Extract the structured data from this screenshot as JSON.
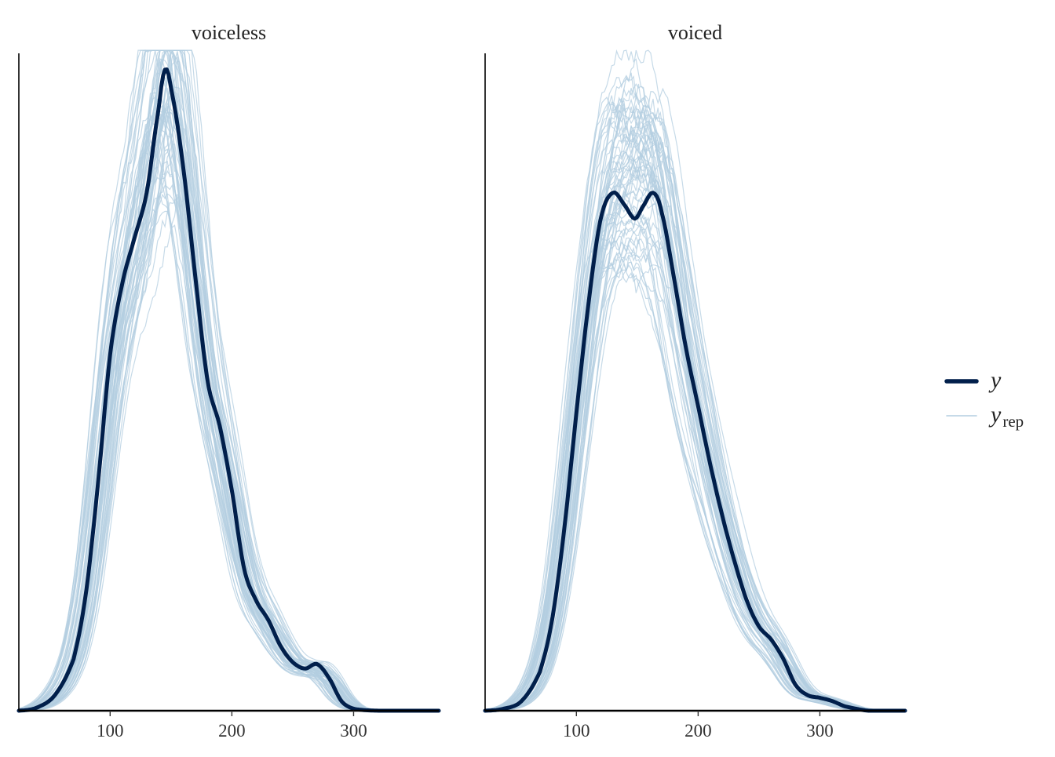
{
  "chart_data": {
    "type": "line",
    "facets": [
      {
        "title": "voiceless",
        "xlim": [
          25,
          370
        ],
        "ylim": [
          0,
          1.0
        ],
        "x_ticks": [
          100,
          200,
          300
        ],
        "y": {
          "x": [
            25,
            40,
            55,
            70,
            80,
            90,
            100,
            110,
            120,
            130,
            140,
            145,
            150,
            160,
            170,
            180,
            190,
            200,
            210,
            220,
            230,
            240,
            250,
            260,
            270,
            280,
            290,
            300,
            320,
            350,
            370
          ],
          "density": [
            0.0,
            0.005,
            0.025,
            0.08,
            0.18,
            0.35,
            0.55,
            0.66,
            0.73,
            0.8,
            0.93,
            0.99,
            0.96,
            0.84,
            0.67,
            0.51,
            0.44,
            0.34,
            0.22,
            0.17,
            0.14,
            0.1,
            0.075,
            0.065,
            0.072,
            0.05,
            0.015,
            0.003,
            0.0,
            0.0,
            0.0
          ]
        }
      },
      {
        "title": "voiced",
        "xlim": [
          25,
          370
        ],
        "ylim": [
          0,
          1.0
        ],
        "x_ticks": [
          100,
          200,
          300
        ],
        "y": {
          "x": [
            25,
            40,
            55,
            70,
            80,
            90,
            100,
            110,
            120,
            130,
            140,
            148,
            155,
            163,
            170,
            180,
            190,
            200,
            210,
            220,
            230,
            240,
            250,
            260,
            270,
            280,
            290,
            300,
            310,
            320,
            340,
            370
          ],
          "density": [
            0.0,
            0.003,
            0.015,
            0.06,
            0.14,
            0.28,
            0.46,
            0.63,
            0.76,
            0.8,
            0.78,
            0.76,
            0.78,
            0.8,
            0.77,
            0.67,
            0.56,
            0.47,
            0.38,
            0.3,
            0.23,
            0.17,
            0.13,
            0.11,
            0.08,
            0.04,
            0.024,
            0.02,
            0.015,
            0.007,
            0.0,
            0.0
          ]
        }
      }
    ],
    "legend": {
      "position": "right",
      "entries": [
        {
          "label": "y",
          "subscript": "",
          "color": "#011f4b",
          "style": "thick"
        },
        {
          "label": "y",
          "subscript": "rep",
          "color": "#b3cde0",
          "style": "thin"
        }
      ]
    },
    "y_rep_draws": 60,
    "grid": false
  }
}
